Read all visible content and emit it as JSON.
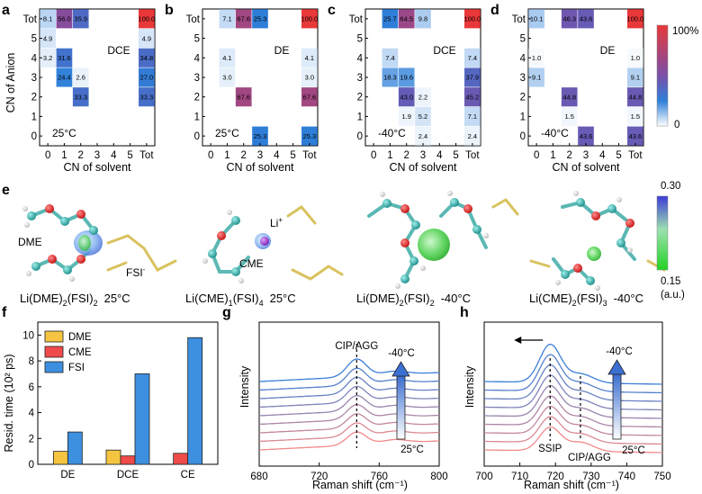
{
  "panel_labels": {
    "a": "a",
    "b": "b",
    "c": "c",
    "d": "d",
    "e": "e",
    "f": "f",
    "g": "g",
    "h": "h"
  },
  "heatmap_colorbar": {
    "max_label": "100%",
    "min_label": "0"
  },
  "density_colorbar": {
    "max_label": "0.30",
    "min_label": "0.15",
    "unit": "(a.u.)"
  },
  "molecule_labels": {
    "dme": "DME",
    "fsi": "FSI",
    "fsi_sup": "-",
    "cme": "CME",
    "li": "Li",
    "li_sup": "+"
  },
  "captions": [
    {
      "main": "Li(DME)",
      "s1": "2",
      "mid": "(FSI)",
      "s2": "2",
      "temp": "25°C"
    },
    {
      "main": "Li(CME)",
      "s1": "1",
      "mid": "(FSI)",
      "s2": "4",
      "temp": "25°C"
    },
    {
      "main": "Li(DME)",
      "s1": "2",
      "mid": "(FSI)",
      "s2": "2",
      "temp": "-40°C"
    },
    {
      "main": "Li(CME)",
      "s1": "2",
      "mid": "(FSI)",
      "s2": "3",
      "temp": "-40°C"
    }
  ],
  "chart_data": [
    {
      "type": "heatmap",
      "panel": "a",
      "solvent": "DCE",
      "temperature": "25°C",
      "xlabel": "CN of solvent",
      "ylabel": "CN of Anion",
      "x_ticks": [
        "0",
        "1",
        "2",
        "3",
        "4",
        "5",
        "Tot"
      ],
      "y_ticks": [
        "Tot",
        "5",
        "4",
        "3",
        "2",
        "1",
        "0"
      ],
      "cells": [
        {
          "x": "0",
          "y": "Tot",
          "value": 8.1,
          "label": "8.1"
        },
        {
          "x": "1",
          "y": "Tot",
          "value": 56.0,
          "label": "56.0"
        },
        {
          "x": "2",
          "y": "Tot",
          "value": 35.9,
          "label": "35.9"
        },
        {
          "x": "Tot",
          "y": "Tot",
          "value": 100.0,
          "label": "100.0"
        },
        {
          "x": "0",
          "y": "5",
          "value": 4.9,
          "label": "4.9"
        },
        {
          "x": "Tot",
          "y": "5",
          "value": 4.9,
          "label": "4.9"
        },
        {
          "x": "0",
          "y": "4",
          "value": 3.2,
          "label": "3.2"
        },
        {
          "x": "1",
          "y": "4",
          "value": 31.6,
          "label": "31.6"
        },
        {
          "x": "Tot",
          "y": "4",
          "value": 34.8,
          "label": "34.8"
        },
        {
          "x": "1",
          "y": "3",
          "value": 24.4,
          "label": "24.4"
        },
        {
          "x": "2",
          "y": "3",
          "value": 2.6,
          "label": "2.6"
        },
        {
          "x": "Tot",
          "y": "3",
          "value": 27.0,
          "label": "27.0"
        },
        {
          "x": "2",
          "y": "2",
          "value": 33.3,
          "label": "33.3"
        },
        {
          "x": "Tot",
          "y": "2",
          "value": 33.3,
          "label": "33.3"
        }
      ]
    },
    {
      "type": "heatmap",
      "panel": "b",
      "solvent": "DE",
      "temperature": "25°C",
      "xlabel": "CN of solvent",
      "ylabel": "",
      "x_ticks": [
        "0",
        "1",
        "2",
        "3",
        "4",
        "5",
        "Tot"
      ],
      "y_ticks": [
        "Tot",
        "5",
        "4",
        "3",
        "2",
        "1",
        "0"
      ],
      "cells": [
        {
          "x": "1",
          "y": "Tot",
          "value": 7.1,
          "label": "7.1"
        },
        {
          "x": "2",
          "y": "Tot",
          "value": 67.6,
          "label": "67.6"
        },
        {
          "x": "3",
          "y": "Tot",
          "value": 25.3,
          "label": "25.3"
        },
        {
          "x": "Tot",
          "y": "Tot",
          "value": 100.0,
          "label": "100.0"
        },
        {
          "x": "1",
          "y": "4",
          "value": 4.1,
          "label": "4.1"
        },
        {
          "x": "Tot",
          "y": "4",
          "value": 4.1,
          "label": "4.1"
        },
        {
          "x": "1",
          "y": "3",
          "value": 3.0,
          "label": "3.0"
        },
        {
          "x": "Tot",
          "y": "3",
          "value": 3.0,
          "label": "3.0"
        },
        {
          "x": "2",
          "y": "2",
          "value": 67.6,
          "label": "67.6"
        },
        {
          "x": "Tot",
          "y": "2",
          "value": 67.6,
          "label": "67.6"
        },
        {
          "x": "3",
          "y": "0",
          "value": 25.3,
          "label": "25.3"
        },
        {
          "x": "Tot",
          "y": "0",
          "value": 25.3,
          "label": "25.3"
        }
      ]
    },
    {
      "type": "heatmap",
      "panel": "c",
      "solvent": "DCE",
      "temperature": "-40°C",
      "xlabel": "CN of solvent",
      "ylabel": "",
      "x_ticks": [
        "0",
        "1",
        "2",
        "3",
        "4",
        "5",
        "Tot"
      ],
      "y_ticks": [
        "Tot",
        "5",
        "4",
        "3",
        "2",
        "1",
        "0"
      ],
      "cells": [
        {
          "x": "1",
          "y": "Tot",
          "value": 25.7,
          "label": "25.7"
        },
        {
          "x": "2",
          "y": "Tot",
          "value": 64.5,
          "label": "64.5"
        },
        {
          "x": "3",
          "y": "Tot",
          "value": 9.8,
          "label": "9.8"
        },
        {
          "x": "Tot",
          "y": "Tot",
          "value": 100.0,
          "label": "100.0"
        },
        {
          "x": "1",
          "y": "4",
          "value": 7.4,
          "label": "7.4"
        },
        {
          "x": "Tot",
          "y": "4",
          "value": 7.4,
          "label": "7.4"
        },
        {
          "x": "1",
          "y": "3",
          "value": 18.3,
          "label": "18.3"
        },
        {
          "x": "2",
          "y": "3",
          "value": 19.6,
          "label": "19.6"
        },
        {
          "x": "Tot",
          "y": "3",
          "value": 37.9,
          "label": "37.9"
        },
        {
          "x": "2",
          "y": "2",
          "value": 43.0,
          "label": "43.0"
        },
        {
          "x": "3",
          "y": "2",
          "value": 2.2,
          "label": "2.2"
        },
        {
          "x": "Tot",
          "y": "2",
          "value": 45.2,
          "label": "45.2"
        },
        {
          "x": "2",
          "y": "1",
          "value": 1.9,
          "label": "1.9"
        },
        {
          "x": "3",
          "y": "1",
          "value": 5.2,
          "label": "5.2"
        },
        {
          "x": "Tot",
          "y": "1",
          "value": 7.1,
          "label": "7.1"
        },
        {
          "x": "3",
          "y": "0",
          "value": 2.4,
          "label": "2.4"
        },
        {
          "x": "Tot",
          "y": "0",
          "value": 2.4,
          "label": "2.4"
        }
      ]
    },
    {
      "type": "heatmap",
      "panel": "d",
      "solvent": "DE",
      "temperature": "-40°C",
      "xlabel": "CN of solvent",
      "ylabel": "",
      "x_ticks": [
        "0",
        "1",
        "2",
        "3",
        "4",
        "5",
        "Tot"
      ],
      "y_ticks": [
        "Tot",
        "5",
        "4",
        "3",
        "2",
        "1",
        "0"
      ],
      "cells": [
        {
          "x": "0",
          "y": "Tot",
          "value": 10.1,
          "label": "10.1"
        },
        {
          "x": "2",
          "y": "Tot",
          "value": 46.3,
          "label": "46.3"
        },
        {
          "x": "3",
          "y": "Tot",
          "value": 43.6,
          "label": "43.6"
        },
        {
          "x": "Tot",
          "y": "Tot",
          "value": 100.0,
          "label": "100.0"
        },
        {
          "x": "0",
          "y": "4",
          "value": 1.0,
          "label": "1.0"
        },
        {
          "x": "Tot",
          "y": "4",
          "value": 1.0,
          "label": "1.0"
        },
        {
          "x": "0",
          "y": "3",
          "value": 9.1,
          "label": "9.1"
        },
        {
          "x": "Tot",
          "y": "3",
          "value": 9.1,
          "label": "9.1"
        },
        {
          "x": "2",
          "y": "2",
          "value": 44.8,
          "label": "44.8"
        },
        {
          "x": "Tot",
          "y": "2",
          "value": 44.8,
          "label": "44.8"
        },
        {
          "x": "2",
          "y": "1",
          "value": 1.5,
          "label": "1.5"
        },
        {
          "x": "Tot",
          "y": "1",
          "value": 1.5,
          "label": "1.5"
        },
        {
          "x": "3",
          "y": "0",
          "value": 43.6,
          "label": "43.6"
        },
        {
          "x": "Tot",
          "y": "0",
          "value": 43.6,
          "label": "43.6"
        }
      ]
    },
    {
      "type": "bar",
      "panel": "f",
      "categories": [
        "DE",
        "DCE",
        "CE"
      ],
      "series": [
        {
          "name": "DME",
          "values": [
            1.0,
            1.1,
            null
          ],
          "color": "#f5c542"
        },
        {
          "name": "CME",
          "values": [
            null,
            0.65,
            0.85
          ],
          "color": "#ef4b4b"
        },
        {
          "name": "FSI",
          "values": [
            2.5,
            7.0,
            9.8
          ],
          "color": "#3d8fe0"
        }
      ],
      "xlabel": "",
      "ylabel": "Resid. time (10² ps)",
      "ylim": [
        0,
        11
      ],
      "y_ticks": [
        0,
        2,
        4,
        6,
        8,
        10
      ],
      "legend": "top-left"
    },
    {
      "type": "line",
      "panel": "g",
      "xlabel": "Raman shift (cm⁻¹)",
      "ylabel": "Intensity",
      "xlim": [
        680,
        800
      ],
      "x_ticks": [
        680,
        720,
        760,
        800
      ],
      "y_ticks_visible": false,
      "annotation": "CIP/AGG",
      "annotation_x": 745,
      "temp_high": "-40°C",
      "temp_low": "25°C",
      "n_curves": 9,
      "color_from": "#f08a8a",
      "color_to": "#3d7fd6"
    },
    {
      "type": "line",
      "panel": "h",
      "xlabel": "Raman shift (cm⁻¹)",
      "ylabel": "Intensity",
      "xlim": [
        700,
        750
      ],
      "x_ticks": [
        700,
        710,
        720,
        730,
        740,
        750
      ],
      "y_ticks_visible": false,
      "annotation_ssip": "SSIP",
      "ssip_x": 718.5,
      "annotation_cip": "CIP/AGG",
      "cip_x": 727,
      "temp_high": "-40°C",
      "temp_low": "25°C",
      "n_curves": 9,
      "color_from": "#f08a8a",
      "color_to": "#3d7fd6"
    }
  ]
}
